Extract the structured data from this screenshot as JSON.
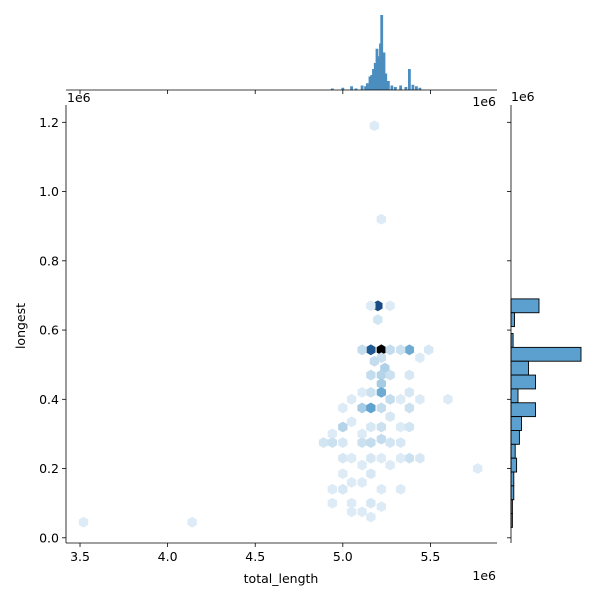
{
  "chart_data": {
    "type": "hexbin",
    "xlabel": "total_length",
    "ylabel": "longest",
    "x_offset_text": "1e6",
    "y_offset_text": "1e6",
    "marg_x_offset_text": "1e6",
    "marg_y_offset_text": "1e6",
    "xlim": [
      3.42,
      5.88
    ],
    "ylim": [
      -0.015,
      1.25
    ],
    "x_ticks": [
      3.5,
      4.0,
      4.5,
      5.0,
      5.5
    ],
    "x_tick_labels": [
      "3.5",
      "4.0",
      "4.5",
      "5.0",
      "5.5"
    ],
    "y_ticks": [
      0.0,
      0.2,
      0.4,
      0.6,
      0.8,
      1.0,
      1.2
    ],
    "y_tick_labels": [
      "0.0",
      "0.2",
      "0.4",
      "0.6",
      "0.8",
      "1.0",
      "1.2"
    ],
    "colors": {
      "hist": "#4b8dbf",
      "hex_low": "#eef5fb",
      "hex_high": "#000000"
    },
    "hexbins": [
      {
        "x": 3.52,
        "y": 0.045,
        "c": 0.06
      },
      {
        "x": 4.14,
        "y": 0.045,
        "c": 0.06
      },
      {
        "x": 5.18,
        "y": 1.19,
        "c": 0.06
      },
      {
        "x": 5.22,
        "y": 0.92,
        "c": 0.06
      },
      {
        "x": 5.2,
        "y": 0.67,
        "c": 0.85
      },
      {
        "x": 5.27,
        "y": 0.67,
        "c": 0.06
      },
      {
        "x": 5.16,
        "y": 0.67,
        "c": 0.06
      },
      {
        "x": 5.2,
        "y": 0.63,
        "c": 0.1
      },
      {
        "x": 5.16,
        "y": 0.543,
        "c": 0.8
      },
      {
        "x": 5.22,
        "y": 0.543,
        "c": 1.0
      },
      {
        "x": 5.38,
        "y": 0.543,
        "c": 0.45
      },
      {
        "x": 5.11,
        "y": 0.543,
        "c": 0.15
      },
      {
        "x": 5.27,
        "y": 0.543,
        "c": 0.15
      },
      {
        "x": 5.33,
        "y": 0.543,
        "c": 0.12
      },
      {
        "x": 5.49,
        "y": 0.543,
        "c": 0.08
      },
      {
        "x": 5.44,
        "y": 0.52,
        "c": 0.06
      },
      {
        "x": 5.22,
        "y": 0.52,
        "c": 0.12
      },
      {
        "x": 5.18,
        "y": 0.51,
        "c": 0.15
      },
      {
        "x": 5.24,
        "y": 0.49,
        "c": 0.22
      },
      {
        "x": 5.16,
        "y": 0.47,
        "c": 0.15
      },
      {
        "x": 5.22,
        "y": 0.47,
        "c": 0.2
      },
      {
        "x": 5.27,
        "y": 0.47,
        "c": 0.12
      },
      {
        "x": 5.38,
        "y": 0.47,
        "c": 0.08
      },
      {
        "x": 5.22,
        "y": 0.445,
        "c": 0.25
      },
      {
        "x": 5.16,
        "y": 0.42,
        "c": 0.12
      },
      {
        "x": 5.22,
        "y": 0.42,
        "c": 0.45
      },
      {
        "x": 5.38,
        "y": 0.42,
        "c": 0.08
      },
      {
        "x": 5.11,
        "y": 0.42,
        "c": 0.06
      },
      {
        "x": 5.05,
        "y": 0.4,
        "c": 0.06
      },
      {
        "x": 5.27,
        "y": 0.4,
        "c": 0.15
      },
      {
        "x": 5.33,
        "y": 0.4,
        "c": 0.06
      },
      {
        "x": 5.0,
        "y": 0.375,
        "c": 0.06
      },
      {
        "x": 5.11,
        "y": 0.375,
        "c": 0.25
      },
      {
        "x": 5.16,
        "y": 0.375,
        "c": 0.5
      },
      {
        "x": 5.22,
        "y": 0.375,
        "c": 0.15
      },
      {
        "x": 5.38,
        "y": 0.375,
        "c": 0.12
      },
      {
        "x": 5.44,
        "y": 0.4,
        "c": 0.06
      },
      {
        "x": 5.6,
        "y": 0.4,
        "c": 0.06
      },
      {
        "x": 5.27,
        "y": 0.35,
        "c": 0.08
      },
      {
        "x": 5.05,
        "y": 0.335,
        "c": 0.06
      },
      {
        "x": 5.16,
        "y": 0.32,
        "c": 0.08
      },
      {
        "x": 5.0,
        "y": 0.32,
        "c": 0.2
      },
      {
        "x": 5.22,
        "y": 0.32,
        "c": 0.12
      },
      {
        "x": 5.33,
        "y": 0.32,
        "c": 0.06
      },
      {
        "x": 5.38,
        "y": 0.32,
        "c": 0.1
      },
      {
        "x": 4.94,
        "y": 0.3,
        "c": 0.06
      },
      {
        "x": 5.11,
        "y": 0.3,
        "c": 0.06
      },
      {
        "x": 5.22,
        "y": 0.285,
        "c": 0.15
      },
      {
        "x": 4.89,
        "y": 0.275,
        "c": 0.1
      },
      {
        "x": 4.94,
        "y": 0.275,
        "c": 0.12
      },
      {
        "x": 5.0,
        "y": 0.275,
        "c": 0.08
      },
      {
        "x": 5.11,
        "y": 0.275,
        "c": 0.12
      },
      {
        "x": 5.16,
        "y": 0.275,
        "c": 0.15
      },
      {
        "x": 5.27,
        "y": 0.275,
        "c": 0.1
      },
      {
        "x": 5.33,
        "y": 0.275,
        "c": 0.08
      },
      {
        "x": 5.0,
        "y": 0.23,
        "c": 0.08
      },
      {
        "x": 5.05,
        "y": 0.23,
        "c": 0.06
      },
      {
        "x": 5.16,
        "y": 0.23,
        "c": 0.08
      },
      {
        "x": 5.22,
        "y": 0.23,
        "c": 0.06
      },
      {
        "x": 5.38,
        "y": 0.23,
        "c": 0.12
      },
      {
        "x": 5.44,
        "y": 0.23,
        "c": 0.08
      },
      {
        "x": 5.33,
        "y": 0.23,
        "c": 0.06
      },
      {
        "x": 5.11,
        "y": 0.21,
        "c": 0.06
      },
      {
        "x": 5.27,
        "y": 0.21,
        "c": 0.06
      },
      {
        "x": 5.0,
        "y": 0.185,
        "c": 0.06
      },
      {
        "x": 5.16,
        "y": 0.185,
        "c": 0.08
      },
      {
        "x": 5.77,
        "y": 0.2,
        "c": 0.06
      },
      {
        "x": 5.05,
        "y": 0.16,
        "c": 0.06
      },
      {
        "x": 5.11,
        "y": 0.16,
        "c": 0.06
      },
      {
        "x": 4.94,
        "y": 0.14,
        "c": 0.06
      },
      {
        "x": 5.0,
        "y": 0.14,
        "c": 0.08
      },
      {
        "x": 5.22,
        "y": 0.14,
        "c": 0.06
      },
      {
        "x": 5.33,
        "y": 0.14,
        "c": 0.06
      },
      {
        "x": 4.94,
        "y": 0.1,
        "c": 0.06
      },
      {
        "x": 5.05,
        "y": 0.1,
        "c": 0.06
      },
      {
        "x": 5.16,
        "y": 0.1,
        "c": 0.08
      },
      {
        "x": 5.11,
        "y": 0.075,
        "c": 0.06
      },
      {
        "x": 5.05,
        "y": 0.075,
        "c": 0.06
      },
      {
        "x": 5.16,
        "y": 0.06,
        "c": 0.06
      },
      {
        "x": 5.22,
        "y": 0.09,
        "c": 0.06
      }
    ],
    "marginal_x": [
      {
        "x": 5.0,
        "h": 0.03
      },
      {
        "x": 5.05,
        "h": 0.05
      },
      {
        "x": 5.075,
        "h": 0.02
      },
      {
        "x": 5.11,
        "h": 0.06
      },
      {
        "x": 5.13,
        "h": 0.05
      },
      {
        "x": 5.14,
        "h": 0.09
      },
      {
        "x": 5.155,
        "h": 0.18
      },
      {
        "x": 5.165,
        "h": 0.2
      },
      {
        "x": 5.175,
        "h": 0.28
      },
      {
        "x": 5.185,
        "h": 0.36
      },
      {
        "x": 5.195,
        "h": 0.55
      },
      {
        "x": 5.205,
        "h": 0.45
      },
      {
        "x": 5.215,
        "h": 0.62
      },
      {
        "x": 5.222,
        "h": 1.0
      },
      {
        "x": 5.235,
        "h": 0.5
      },
      {
        "x": 5.245,
        "h": 0.22
      },
      {
        "x": 5.26,
        "h": 0.12
      },
      {
        "x": 5.28,
        "h": 0.06
      },
      {
        "x": 5.3,
        "h": 0.04
      },
      {
        "x": 5.33,
        "h": 0.06
      },
      {
        "x": 5.36,
        "h": 0.04
      },
      {
        "x": 5.38,
        "h": 0.28
      },
      {
        "x": 5.4,
        "h": 0.07
      },
      {
        "x": 5.42,
        "h": 0.05
      },
      {
        "x": 5.44,
        "h": 0.03
      },
      {
        "x": 4.94,
        "h": 0.02
      }
    ],
    "marginal_y": [
      {
        "y": 0.67,
        "w": 0.4
      },
      {
        "y": 0.63,
        "w": 0.05
      },
      {
        "y": 0.57,
        "w": 0.03
      },
      {
        "y": 0.53,
        "w": 1.0
      },
      {
        "y": 0.49,
        "w": 0.25
      },
      {
        "y": 0.45,
        "w": 0.35
      },
      {
        "y": 0.41,
        "w": 0.1
      },
      {
        "y": 0.37,
        "w": 0.35
      },
      {
        "y": 0.33,
        "w": 0.15
      },
      {
        "y": 0.29,
        "w": 0.12
      },
      {
        "y": 0.25,
        "w": 0.06
      },
      {
        "y": 0.21,
        "w": 0.08
      },
      {
        "y": 0.17,
        "w": 0.04
      },
      {
        "y": 0.13,
        "w": 0.04
      },
      {
        "y": 0.09,
        "w": 0.02
      },
      {
        "y": 0.05,
        "w": 0.02
      }
    ]
  }
}
